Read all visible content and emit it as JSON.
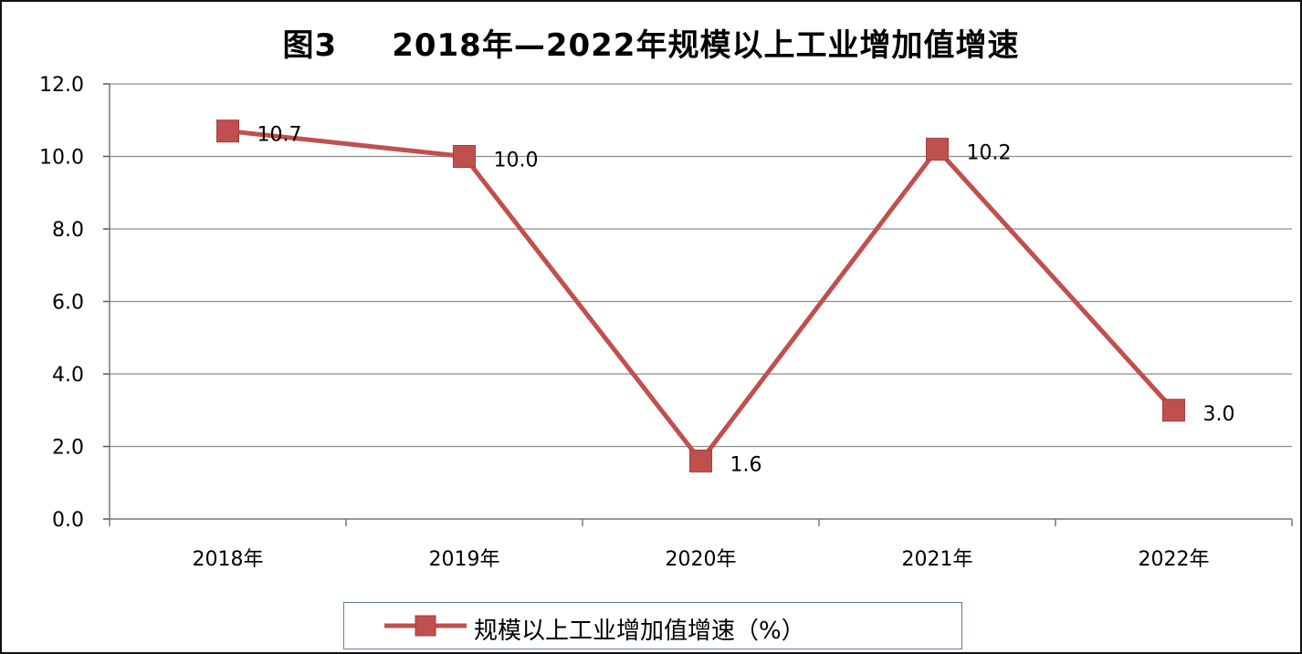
{
  "chart_data": {
    "type": "line",
    "title_prefix": "图3",
    "title": "2018年—2022年规模以上工业增加值增速",
    "categories": [
      "2018年",
      "2019年",
      "2020年",
      "2021年",
      "2022年"
    ],
    "series": [
      {
        "name": "规模以上工业增加值增速（%）",
        "values": [
          10.7,
          10.0,
          1.6,
          10.2,
          3.0
        ],
        "color": "#c0504d"
      }
    ],
    "data_labels": [
      "10.7",
      "10.0",
      "1.6",
      "10.2",
      "3.0"
    ],
    "ylim": [
      0,
      12
    ],
    "yticks": [
      "0.0",
      "2.0",
      "4.0",
      "6.0",
      "8.0",
      "10.0",
      "12.0"
    ],
    "grid": true,
    "legend_position": "bottom",
    "colors": {
      "series": "#c0504d",
      "grid": "#8c8c8c",
      "legend_border": "#5b7fa8"
    }
  }
}
